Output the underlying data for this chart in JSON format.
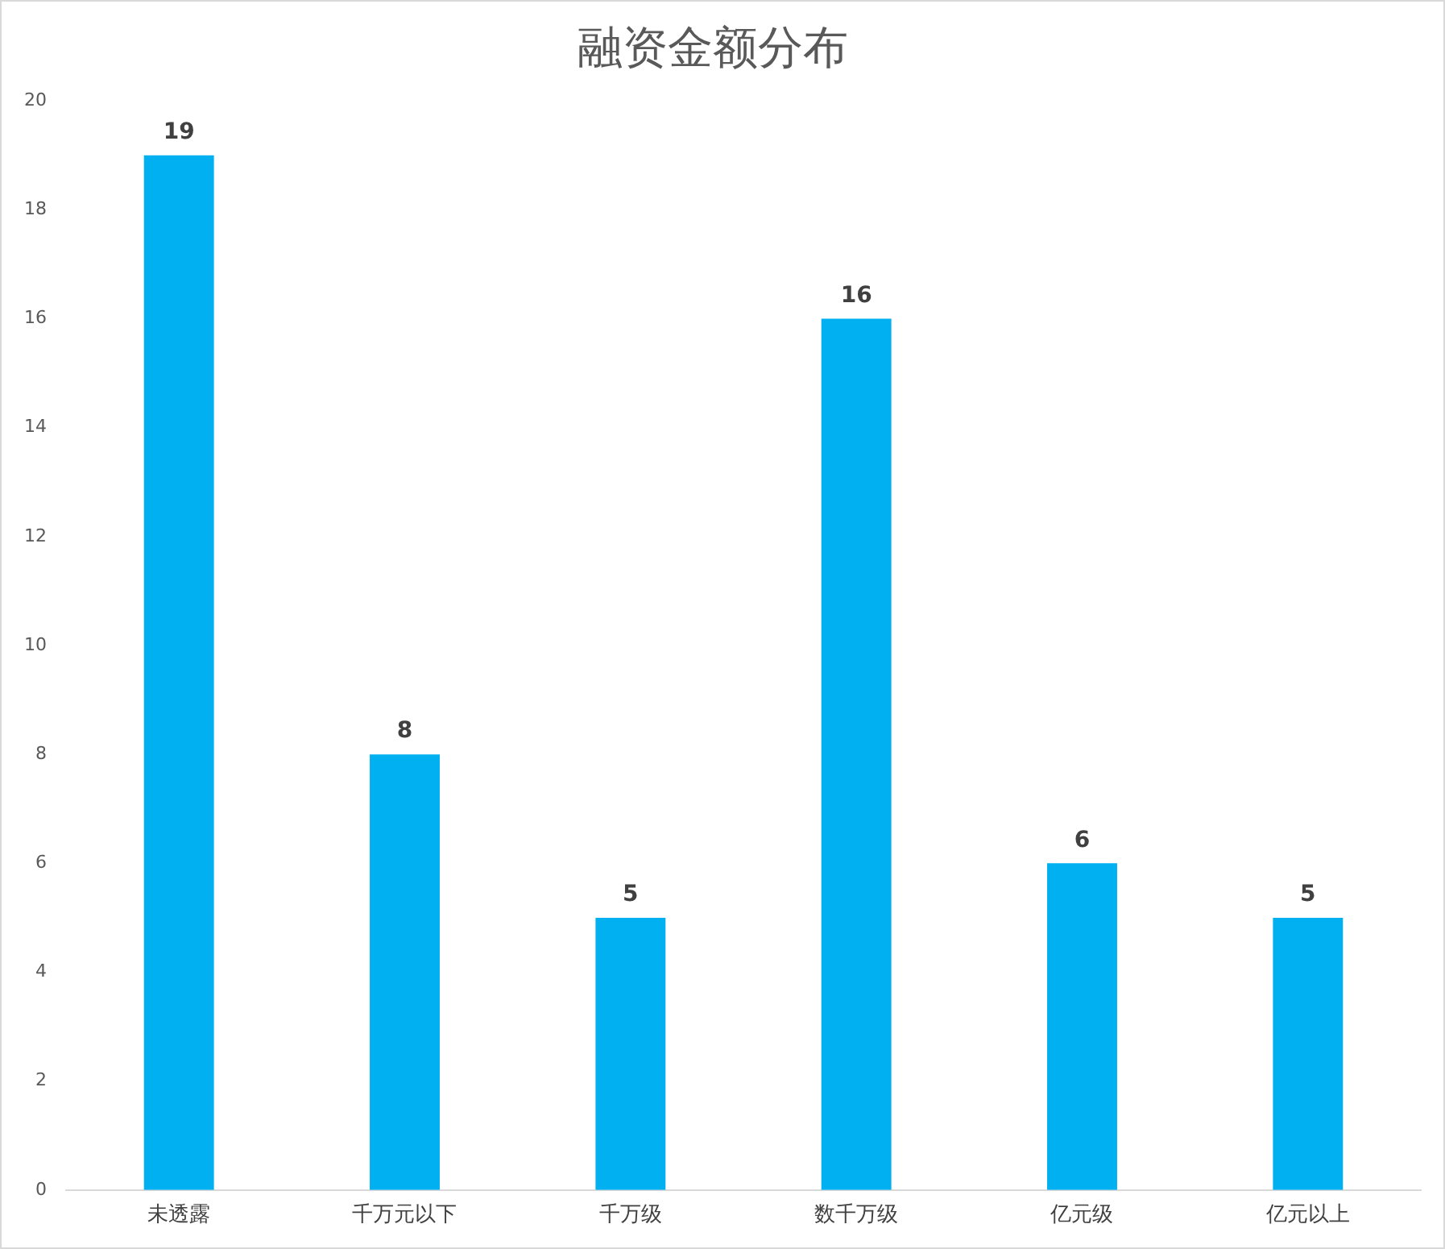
{
  "chart_data": {
    "type": "bar",
    "title": "融资金额分布",
    "categories": [
      "未透露",
      "千万元以下",
      "千万级",
      "数千万级",
      "亿元级",
      "亿元以上"
    ],
    "values": [
      19,
      8,
      5,
      16,
      6,
      5
    ],
    "color": "#00b0f0",
    "ylim": [
      0,
      20
    ],
    "yticks": [
      0,
      2,
      4,
      6,
      8,
      10,
      12,
      14,
      16,
      18,
      20
    ],
    "data_labels": true
  }
}
